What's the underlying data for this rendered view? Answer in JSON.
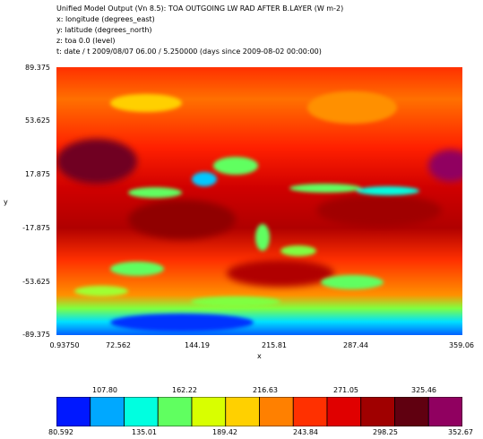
{
  "header": {
    "line1": "Unified Model Output (Vn 8.5): TOA OUTGOING LW RAD AFTER B.LAYER (W m-2)",
    "line2": "x: longitude  (degrees_east)",
    "line3": "y: latitude  (degrees_north)",
    "line4": "z: toa 0.0 (level)",
    "line5": "t: date / t 2009/08/07 06.00 / 5.250000 (days since 2009-08-02 00:00:00)"
  },
  "chart_data": {
    "type": "heatmap",
    "title": "Unified Model Output (Vn 8.5): TOA OUTGOING LW RAD AFTER B.LAYER (W m-2)",
    "xlabel": "x",
    "ylabel": "y",
    "xlim": [
      0.9375,
      359.06
    ],
    "ylim": [
      -89.375,
      89.375
    ],
    "xticks": [
      "0.93750",
      "72.562",
      "144.19",
      "215.81",
      "287.44",
      "359.06"
    ],
    "yticks": [
      "89.375",
      "53.625",
      "17.875",
      "-17.875",
      "-53.625",
      "-89.375"
    ],
    "colorbar": {
      "levels_top": [
        "107.80",
        "162.22",
        "216.63",
        "271.05",
        "325.46"
      ],
      "levels_bottom": [
        "80.592",
        "135.01",
        "189.42",
        "243.84",
        "298.25",
        "352.67"
      ],
      "min": 80.592,
      "max": 352.67,
      "colors": [
        "#0018ff",
        "#00a8ff",
        "#00ffe0",
        "#60ff60",
        "#d8ff00",
        "#ffd000",
        "#ff8000",
        "#ff3000",
        "#e00000",
        "#a00000",
        "#600010",
        "#900060"
      ]
    }
  }
}
